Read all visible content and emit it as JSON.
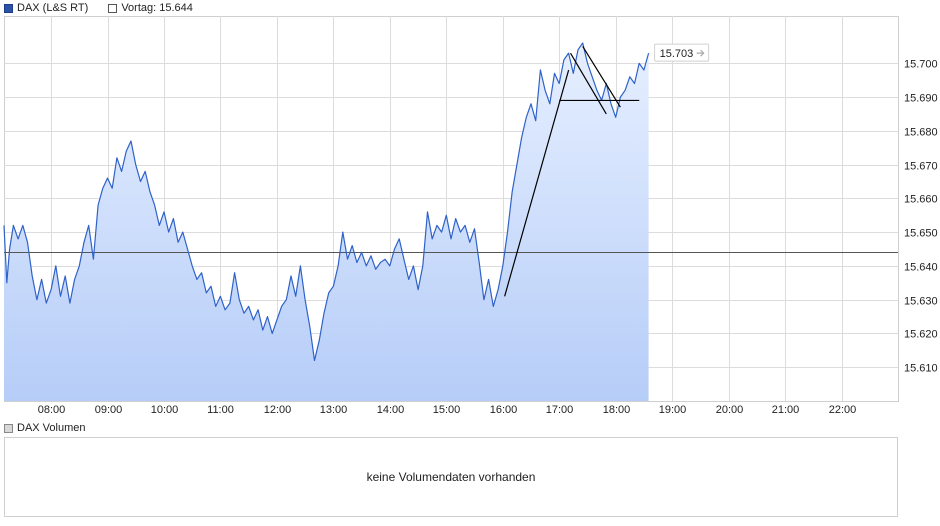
{
  "legend": {
    "series_label": "DAX (L&S RT)",
    "prev_close_label": "Vortag: 15.644",
    "volume_label": "DAX Volumen"
  },
  "volume": {
    "message": "keine Volumendaten vorhanden"
  },
  "colors": {
    "line": "#2f62c8",
    "fill_top": "#e6efff",
    "fill_bottom": "#b6cdf8",
    "grid": "#dcdcdc",
    "prev_close_line": "#555555",
    "drawing": "#000000"
  },
  "chart_data": {
    "type": "area",
    "title": "",
    "xlabel": "",
    "ylabel": "",
    "x_unit": "time",
    "x_range": [
      "07:10",
      "23:00"
    ],
    "xticks": [
      "08:00",
      "09:00",
      "10:00",
      "11:00",
      "12:00",
      "13:00",
      "14:00",
      "15:00",
      "16:00",
      "17:00",
      "18:00",
      "19:00",
      "20:00",
      "21:00",
      "22:00"
    ],
    "ylim": [
      15600,
      15714
    ],
    "yticks": [
      15610,
      15620,
      15630,
      15640,
      15650,
      15660,
      15670,
      15680,
      15690,
      15700
    ],
    "ytick_labels": [
      "15.610",
      "15.620",
      "15.630",
      "15.640",
      "15.650",
      "15.660",
      "15.670",
      "15.680",
      "15.690",
      "15.700"
    ],
    "grid": true,
    "reference_line": {
      "label": "Vortag",
      "value": 15644
    },
    "last_value_label": "15.703",
    "last_value": 15703,
    "series": [
      {
        "points": [
          [
            "07:10",
            15652
          ],
          [
            "07:13",
            15635
          ],
          [
            "07:16",
            15645
          ],
          [
            "07:20",
            15652
          ],
          [
            "07:25",
            15648
          ],
          [
            "07:30",
            15652
          ],
          [
            "07:35",
            15647
          ],
          [
            "07:40",
            15637
          ],
          [
            "07:45",
            15630
          ],
          [
            "07:50",
            15636
          ],
          [
            "07:55",
            15629
          ],
          [
            "08:00",
            15633
          ],
          [
            "08:05",
            15640
          ],
          [
            "08:10",
            15631
          ],
          [
            "08:15",
            15637
          ],
          [
            "08:20",
            15629
          ],
          [
            "08:25",
            15636
          ],
          [
            "08:30",
            15640
          ],
          [
            "08:35",
            15647
          ],
          [
            "08:40",
            15652
          ],
          [
            "08:45",
            15642
          ],
          [
            "08:50",
            15658
          ],
          [
            "08:55",
            15663
          ],
          [
            "09:00",
            15666
          ],
          [
            "09:05",
            15663
          ],
          [
            "09:10",
            15672
          ],
          [
            "09:15",
            15668
          ],
          [
            "09:20",
            15674
          ],
          [
            "09:25",
            15677
          ],
          [
            "09:30",
            15670
          ],
          [
            "09:35",
            15665
          ],
          [
            "09:40",
            15668
          ],
          [
            "09:45",
            15662
          ],
          [
            "09:50",
            15658
          ],
          [
            "09:55",
            15652
          ],
          [
            "10:00",
            15656
          ],
          [
            "10:05",
            15650
          ],
          [
            "10:10",
            15654
          ],
          [
            "10:15",
            15647
          ],
          [
            "10:20",
            15650
          ],
          [
            "10:25",
            15645
          ],
          [
            "10:30",
            15640
          ],
          [
            "10:35",
            15636
          ],
          [
            "10:40",
            15638
          ],
          [
            "10:45",
            15632
          ],
          [
            "10:50",
            15634
          ],
          [
            "10:55",
            15628
          ],
          [
            "11:00",
            15631
          ],
          [
            "11:05",
            15627
          ],
          [
            "11:10",
            15629
          ],
          [
            "11:15",
            15638
          ],
          [
            "11:20",
            15630
          ],
          [
            "11:25",
            15626
          ],
          [
            "11:30",
            15628
          ],
          [
            "11:35",
            15624
          ],
          [
            "11:40",
            15627
          ],
          [
            "11:45",
            15621
          ],
          [
            "11:50",
            15625
          ],
          [
            "11:55",
            15620
          ],
          [
            "12:00",
            15624
          ],
          [
            "12:05",
            15628
          ],
          [
            "12:10",
            15630
          ],
          [
            "12:15",
            15637
          ],
          [
            "12:20",
            15631
          ],
          [
            "12:25",
            15640
          ],
          [
            "12:30",
            15630
          ],
          [
            "12:35",
            15622
          ],
          [
            "12:40",
            15612
          ],
          [
            "12:45",
            15618
          ],
          [
            "12:50",
            15626
          ],
          [
            "12:55",
            15632
          ],
          [
            "13:00",
            15634
          ],
          [
            "13:05",
            15640
          ],
          [
            "13:10",
            15650
          ],
          [
            "13:15",
            15642
          ],
          [
            "13:20",
            15646
          ],
          [
            "13:25",
            15641
          ],
          [
            "13:30",
            15644
          ],
          [
            "13:35",
            15640
          ],
          [
            "13:40",
            15643
          ],
          [
            "13:45",
            15639
          ],
          [
            "13:50",
            15641
          ],
          [
            "13:55",
            15642
          ],
          [
            "14:00",
            15640
          ],
          [
            "14:05",
            15645
          ],
          [
            "14:10",
            15648
          ],
          [
            "14:15",
            15642
          ],
          [
            "14:20",
            15636
          ],
          [
            "14:25",
            15640
          ],
          [
            "14:30",
            15633
          ],
          [
            "14:35",
            15640
          ],
          [
            "14:40",
            15656
          ],
          [
            "14:45",
            15648
          ],
          [
            "14:50",
            15652
          ],
          [
            "14:55",
            15650
          ],
          [
            "15:00",
            15655
          ],
          [
            "15:05",
            15648
          ],
          [
            "15:10",
            15654
          ],
          [
            "15:15",
            15650
          ],
          [
            "15:20",
            15652
          ],
          [
            "15:25",
            15647
          ],
          [
            "15:30",
            15651
          ],
          [
            "15:35",
            15641
          ],
          [
            "15:40",
            15630
          ],
          [
            "15:45",
            15636
          ],
          [
            "15:50",
            15628
          ],
          [
            "15:55",
            15633
          ],
          [
            "16:00",
            15640
          ],
          [
            "16:05",
            15650
          ],
          [
            "16:10",
            15662
          ],
          [
            "16:15",
            15670
          ],
          [
            "16:20",
            15678
          ],
          [
            "16:25",
            15684
          ],
          [
            "16:30",
            15688
          ],
          [
            "16:35",
            15683
          ],
          [
            "16:40",
            15698
          ],
          [
            "16:45",
            15692
          ],
          [
            "16:50",
            15688
          ],
          [
            "16:55",
            15697
          ],
          [
            "17:00",
            15694
          ],
          [
            "17:05",
            15701
          ],
          [
            "17:10",
            15703
          ],
          [
            "17:15",
            15697
          ],
          [
            "17:20",
            15704
          ],
          [
            "17:25",
            15706
          ],
          [
            "17:30",
            15700
          ],
          [
            "17:35",
            15696
          ],
          [
            "17:40",
            15692
          ],
          [
            "17:45",
            15689
          ],
          [
            "17:50",
            15694
          ],
          [
            "17:55",
            15688
          ],
          [
            "18:00",
            15684
          ],
          [
            "18:05",
            15690
          ],
          [
            "18:10",
            15692
          ],
          [
            "18:15",
            15696
          ],
          [
            "18:20",
            15694
          ],
          [
            "18:25",
            15700
          ],
          [
            "18:30",
            15698
          ],
          [
            "18:35",
            15703
          ]
        ]
      }
    ],
    "drawings": [
      {
        "type": "trendline",
        "from": [
          "16:02",
          15631
        ],
        "to": [
          "17:10",
          15698
        ]
      },
      {
        "type": "horizontal",
        "from": [
          "17:00",
          15689
        ],
        "to": [
          "18:25",
          15689
        ]
      },
      {
        "type": "trendline",
        "from": [
          "17:12",
          15703
        ],
        "to": [
          "17:50",
          15685
        ]
      },
      {
        "type": "trendline",
        "from": [
          "17:25",
          15705
        ],
        "to": [
          "18:05",
          15687
        ]
      }
    ]
  }
}
